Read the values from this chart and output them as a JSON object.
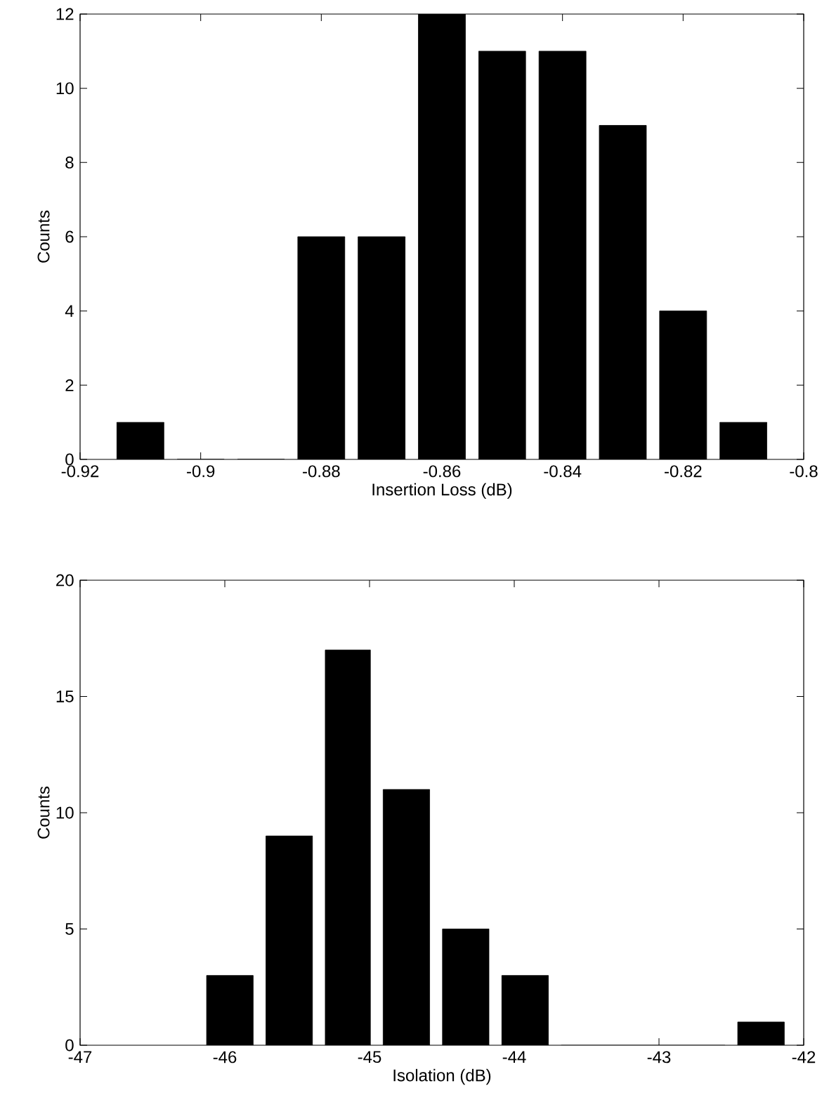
{
  "chart_data": [
    {
      "type": "histogram",
      "xlabel": "Insertion Loss (dB)",
      "ylabel": "Counts",
      "color": "#000000",
      "bins": [
        -0.915,
        -0.905,
        -0.895,
        -0.885,
        -0.875,
        -0.865,
        -0.855,
        -0.845,
        -0.835,
        -0.825,
        -0.815,
        -0.805
      ],
      "values": [
        1,
        0,
        0,
        6,
        6,
        12,
        11,
        11,
        9,
        4,
        1
      ],
      "xlim": [
        -0.92,
        -0.8
      ],
      "ylim": [
        0,
        12
      ],
      "xticks": [
        -0.92,
        -0.9,
        -0.88,
        -0.86,
        -0.84,
        -0.82,
        -0.8
      ],
      "yticks": [
        0,
        2,
        4,
        6,
        8,
        10,
        12
      ]
    },
    {
      "type": "histogram",
      "xlabel": "Isolation (dB)",
      "ylabel": "Counts",
      "color": "#000000",
      "bins": [
        -46.17,
        -45.76,
        -45.35,
        -44.95,
        -44.54,
        -44.13,
        -43.72,
        -42.5,
        -42.09
      ],
      "values": [
        3,
        9,
        17,
        11,
        5,
        3,
        0,
        1
      ],
      "xlim": [
        -47,
        -42
      ],
      "ylim": [
        0,
        20
      ],
      "xticks": [
        -47,
        -46,
        -45,
        -44,
        -43,
        -42
      ],
      "yticks": [
        0,
        5,
        10,
        15,
        20
      ]
    }
  ]
}
